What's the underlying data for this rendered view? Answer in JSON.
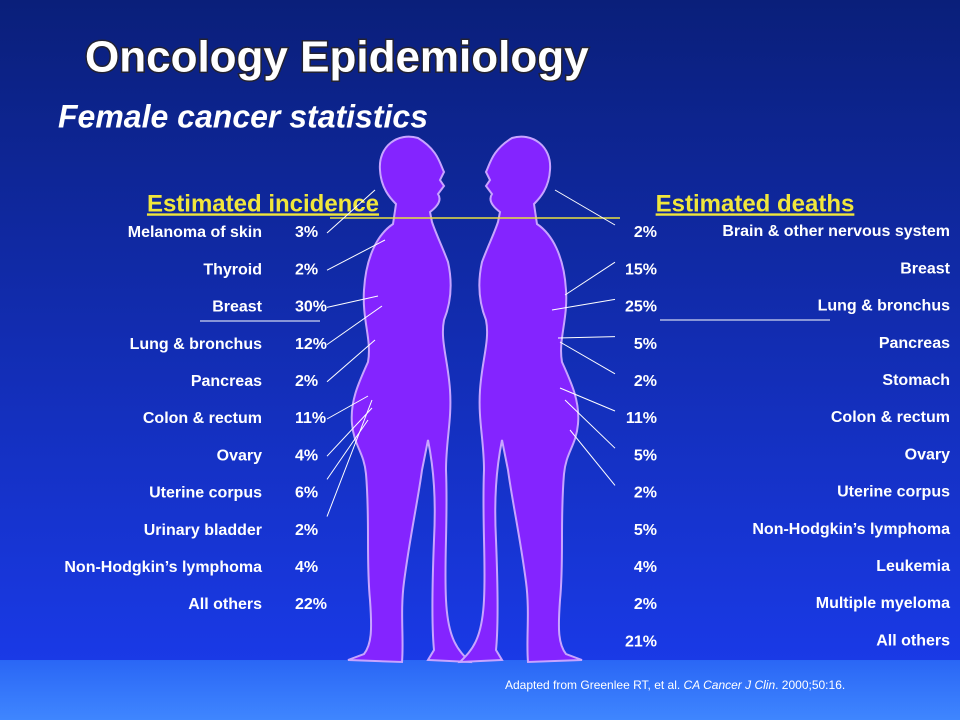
{
  "title": "Oncology  Epidemiology",
  "subtitle": "Female cancer statistics",
  "incidence": {
    "heading": "Estimated incidence",
    "rows": [
      [
        "Melanoma of skin",
        "3%"
      ],
      [
        "Thyroid",
        "2%"
      ],
      [
        "Breast",
        "30%"
      ],
      [
        "Lung & bronchus",
        "12%"
      ],
      [
        "Pancreas",
        "2%"
      ],
      [
        "Colon & rectum",
        "11%"
      ],
      [
        "Ovary",
        "4%"
      ],
      [
        "Uterine corpus",
        "6%"
      ],
      [
        "Urinary bladder",
        "2%"
      ],
      [
        "Non-Hodgkin’s lymphoma",
        "4%"
      ],
      [
        "All others",
        "22%"
      ]
    ]
  },
  "deaths": {
    "heading": "Estimated deaths",
    "rows": [
      [
        "Brain & other nervous system",
        "2%"
      ],
      [
        "Breast",
        "15%"
      ],
      [
        "Lung & bronchus",
        "25%"
      ],
      [
        "Pancreas",
        "5%"
      ],
      [
        "Stomach",
        "2%"
      ],
      [
        "Colon & rectum",
        "11%"
      ],
      [
        "Ovary",
        "5%"
      ],
      [
        "Uterine corpus",
        "2%"
      ],
      [
        "Non-Hodgkin’s lymphoma",
        "5%"
      ],
      [
        "Leukemia",
        "4%"
      ],
      [
        "Multiple myeloma",
        "2%"
      ],
      [
        "All others",
        "21%"
      ]
    ]
  },
  "citation": {
    "before": "Adapted from Greenlee RT, et al. ",
    "journal": "CA Cancer J Clin",
    "after": ". 2000;50:16."
  }
}
